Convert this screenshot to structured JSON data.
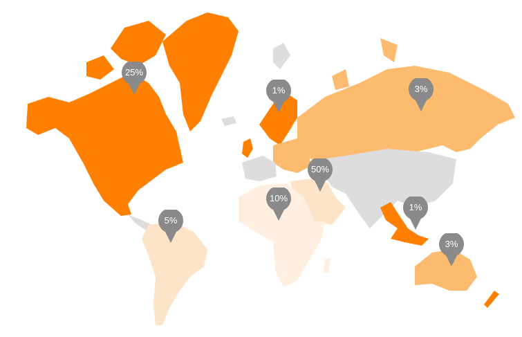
{
  "colors": {
    "high": "#ff7f00",
    "medium": "#fdbb6f",
    "low": "#fde3c8",
    "lowest": "#feefe0",
    "none": "#dddddd",
    "pin": "#8a8a8a"
  },
  "markers": [
    {
      "region": "north-america",
      "label": "25%"
    },
    {
      "region": "northern-europe",
      "label": "1%"
    },
    {
      "region": "russia",
      "label": "3%"
    },
    {
      "region": "middle-east",
      "label": "50%"
    },
    {
      "region": "africa",
      "label": "10%"
    },
    {
      "region": "south-america",
      "label": "5%"
    },
    {
      "region": "southeast-asia",
      "label": "1%"
    },
    {
      "region": "australia",
      "label": "3%"
    }
  ]
}
